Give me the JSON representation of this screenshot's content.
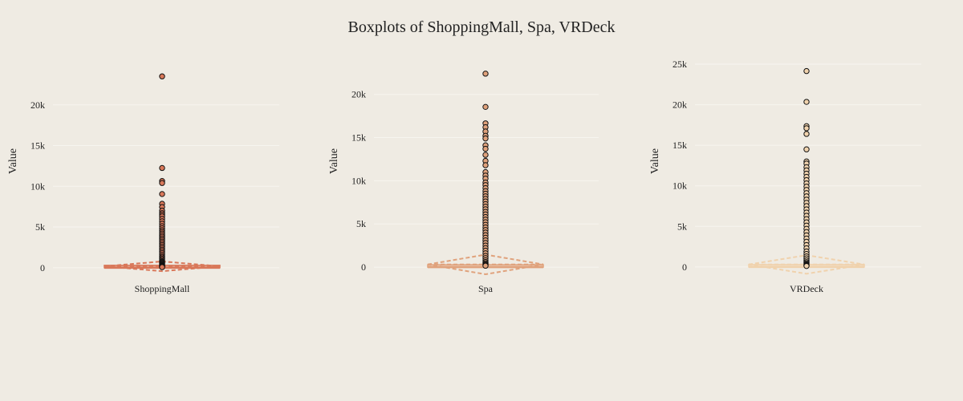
{
  "chart_data": {
    "title": "Boxplots of ShoppingMall, Spa, VRDeck",
    "panels": [
      {
        "type": "box",
        "category": "ShoppingMall",
        "ylabel": "Value",
        "yticks": [
          0,
          5000,
          10000,
          15000,
          20000
        ],
        "ytick_labels": [
          "0",
          "5k",
          "10k",
          "15k",
          "20k"
        ],
        "ylim": [
          -1200,
          25000
        ],
        "box": {
          "min": 0,
          "q1": 0,
          "median": 0,
          "q3": 27,
          "upper_fence": 67,
          "mean": 174,
          "sd": 600
        },
        "color": "#d9785a",
        "outliers": [
          23500,
          12250,
          10650,
          10400,
          9050,
          7850,
          7450,
          7000,
          6700,
          6500,
          6300,
          6000,
          5700,
          5400,
          5100,
          4850,
          4600,
          4400,
          4200,
          4000,
          3800,
          3600,
          3400,
          3200,
          3000,
          2800,
          2600,
          2400,
          2200,
          2000,
          1800,
          1600,
          1400,
          1250,
          1100,
          950,
          800,
          700,
          600,
          500,
          400,
          320,
          250,
          180,
          120,
          90,
          70
        ]
      },
      {
        "type": "box",
        "category": "Spa",
        "ylabel": "Value",
        "yticks": [
          0,
          5000,
          10000,
          15000,
          20000
        ],
        "ytick_labels": [
          "0",
          "5k",
          "10k",
          "15k",
          "20k"
        ],
        "ylim": [
          -1200,
          23500
        ],
        "box": {
          "min": 0,
          "q1": 0,
          "median": 0,
          "q3": 59,
          "upper_fence": 147,
          "mean": 311,
          "sd": 1137
        },
        "color": "#e0a27c",
        "outliers": [
          22400,
          18550,
          16650,
          16200,
          15700,
          15200,
          14900,
          14100,
          13700,
          13000,
          12300,
          11800,
          11000,
          10600,
          10250,
          9800,
          9500,
          9150,
          8800,
          8500,
          8200,
          7900,
          7600,
          7300,
          7000,
          6700,
          6400,
          6100,
          5800,
          5500,
          5200,
          4900,
          4600,
          4300,
          4000,
          3700,
          3400,
          3100,
          2800,
          2500,
          2200,
          1900,
          1600,
          1300,
          1050,
          800,
          600,
          450,
          320,
          220,
          160
        ]
      },
      {
        "type": "box",
        "category": "VRDeck",
        "ylabel": "Value",
        "yticks": [
          0,
          5000,
          10000,
          15000,
          20000,
          25000
        ],
        "ytick_labels": [
          "0",
          "5k",
          "10k",
          "15k",
          "20k",
          "25k"
        ],
        "ylim": [
          -1300,
          25000
        ],
        "box": {
          "min": 0,
          "q1": 0,
          "median": 0,
          "q3": 46,
          "upper_fence": 115,
          "mean": 305,
          "sd": 1146
        },
        "color": "#f0d2ad",
        "outliers": [
          24150,
          20350,
          17350,
          17100,
          16400,
          14500,
          13000,
          12750,
          12300,
          11900,
          11500,
          11100,
          10700,
          10300,
          9900,
          9500,
          9100,
          8700,
          8300,
          7900,
          7500,
          7100,
          6700,
          6300,
          5900,
          5500,
          5100,
          4700,
          4300,
          3900,
          3500,
          3100,
          2700,
          2300,
          1900,
          1600,
          1300,
          1050,
          800,
          600,
          450,
          320,
          220,
          160,
          120
        ]
      }
    ]
  },
  "colors": {
    "background": "#efebe3",
    "grid": "#f7f5f0",
    "marker_outline": "#111111"
  }
}
